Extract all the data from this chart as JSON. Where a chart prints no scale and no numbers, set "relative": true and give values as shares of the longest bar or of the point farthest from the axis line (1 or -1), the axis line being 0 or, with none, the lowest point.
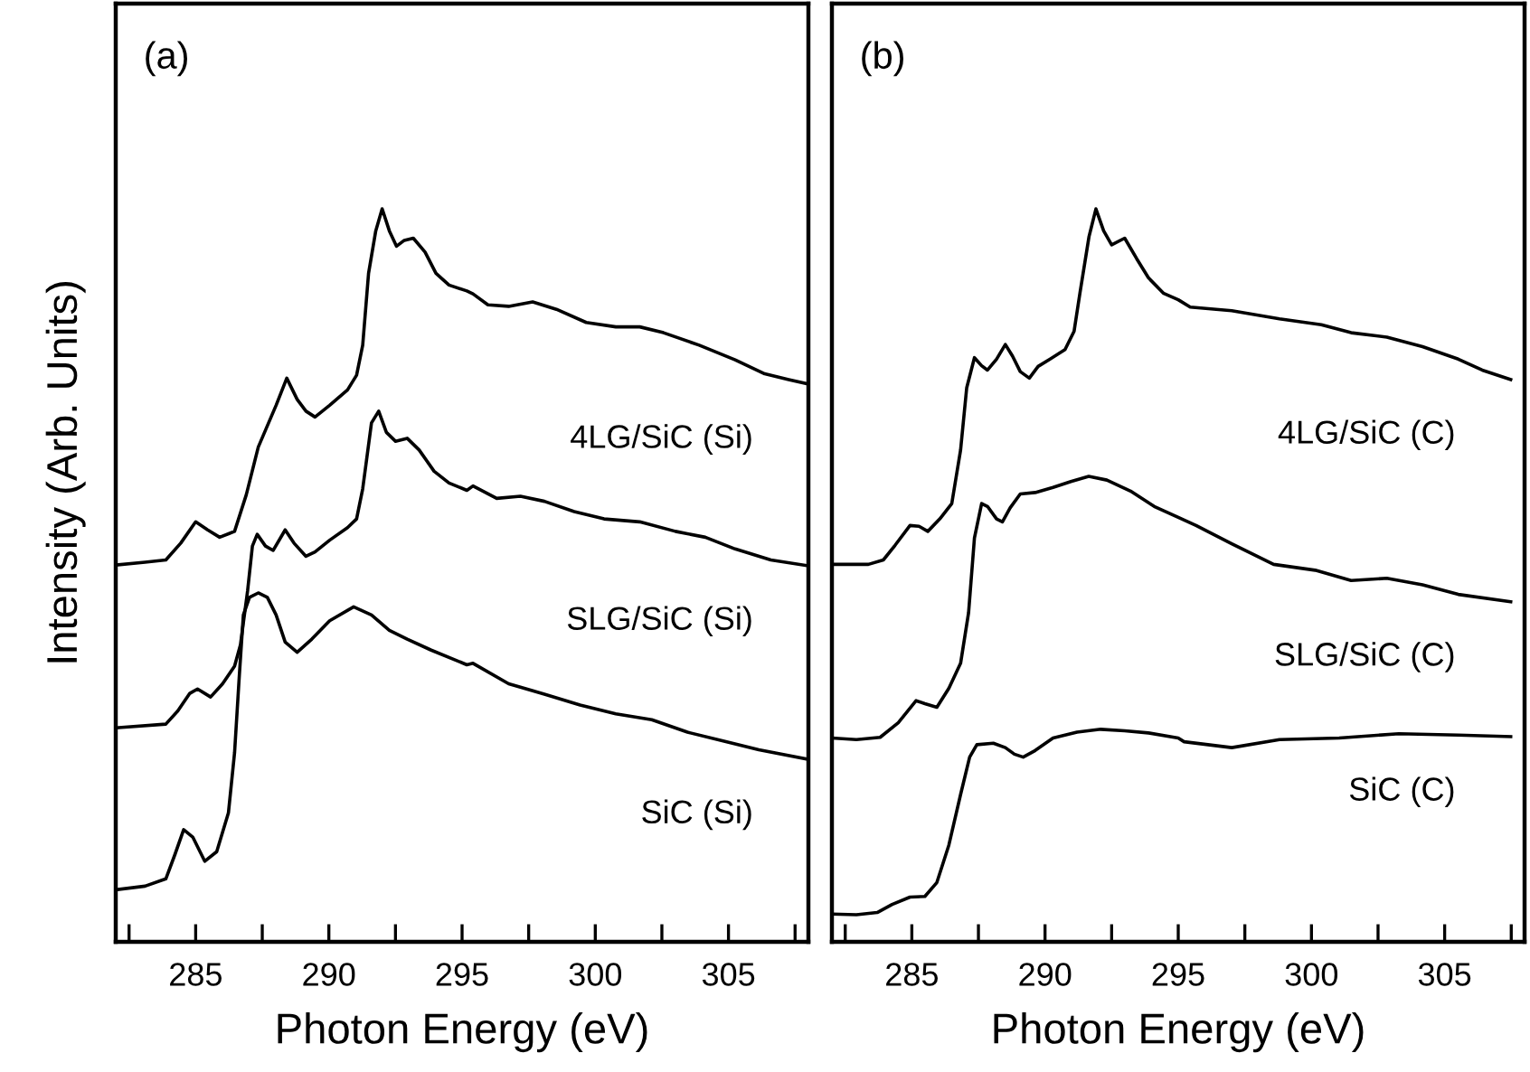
{
  "chart_data": [
    {
      "type": "line",
      "relative": true,
      "xlabel": "Photon Energy (eV)",
      "ylabel": "Intensity (Arb. Units)",
      "annotations": [
        "(a)"
      ],
      "xlim": [
        282,
        308
      ],
      "xticks": [
        {
          "value": 282.5,
          "label": null
        },
        285,
        {
          "value": 287.5,
          "label": null
        },
        290,
        {
          "value": 292.5,
          "label": null
        },
        295,
        {
          "value": 297.5,
          "label": null
        },
        300,
        {
          "value": 302.5,
          "label": null
        },
        305,
        {
          "value": 307.5,
          "label": null
        }
      ],
      "tick_labels": "x",
      "series": [
        {
          "name": "4LG/SiC (Si)",
          "color": "#000000",
          "x": [
            282.0,
            283.1,
            283.88,
            284.44,
            285.0,
            285.45,
            285.9,
            286.46,
            286.9,
            287.35,
            287.69,
            288.02,
            288.42,
            288.81,
            289.14,
            289.48,
            290.03,
            290.7,
            291.04,
            291.27,
            291.49,
            291.76,
            292.0,
            292.27,
            292.54,
            292.83,
            293.17,
            293.61,
            294.02,
            294.51,
            295.18,
            295.41,
            295.97,
            296.75,
            297.65,
            298.54,
            299.66,
            300.77,
            301.67,
            302.56,
            303.9,
            305.25,
            306.36,
            307.26,
            308.0
          ],
          "values": [
            0.514,
            0.518,
            0.521,
            0.544,
            0.573,
            0.562,
            0.552,
            0.56,
            0.61,
            0.675,
            0.704,
            0.732,
            0.769,
            0.74,
            0.724,
            0.716,
            0.732,
            0.753,
            0.773,
            0.814,
            0.912,
            0.97,
            1.0,
            0.97,
            0.949,
            0.957,
            0.96,
            0.941,
            0.912,
            0.896,
            0.888,
            0.884,
            0.869,
            0.867,
            0.873,
            0.863,
            0.845,
            0.839,
            0.839,
            0.831,
            0.814,
            0.794,
            0.775,
            0.767,
            0.761
          ]
        },
        {
          "name": "SLG/SiC (Si)",
          "color": "#000000",
          "x": [
            282.0,
            283.88,
            284.33,
            284.78,
            285.07,
            285.56,
            286.01,
            286.46,
            286.68,
            286.95,
            287.13,
            287.31,
            287.62,
            287.91,
            288.36,
            288.69,
            289.14,
            289.48,
            290.03,
            290.7,
            291.04,
            291.27,
            291.6,
            291.87,
            292.16,
            292.5,
            292.94,
            293.39,
            293.95,
            294.51,
            295.18,
            295.41,
            296.3,
            297.19,
            298.09,
            299.21,
            300.33,
            301.67,
            303.01,
            304.13,
            305.25,
            306.59,
            308.0
          ],
          "values": [
            0.292,
            0.297,
            0.315,
            0.339,
            0.345,
            0.334,
            0.352,
            0.376,
            0.405,
            0.479,
            0.54,
            0.556,
            0.54,
            0.534,
            0.562,
            0.544,
            0.526,
            0.532,
            0.548,
            0.565,
            0.577,
            0.618,
            0.708,
            0.724,
            0.695,
            0.683,
            0.687,
            0.671,
            0.642,
            0.626,
            0.616,
            0.622,
            0.605,
            0.608,
            0.601,
            0.587,
            0.577,
            0.573,
            0.56,
            0.552,
            0.536,
            0.521,
            0.513
          ]
        },
        {
          "name": "SiC (Si)",
          "color": "#000000",
          "x": [
            282.0,
            283.1,
            283.88,
            284.22,
            284.55,
            284.89,
            285.34,
            285.79,
            286.23,
            286.46,
            286.64,
            286.79,
            287.02,
            287.35,
            287.69,
            288.02,
            288.36,
            288.81,
            289.36,
            290.03,
            290.93,
            291.6,
            292.27,
            292.94,
            293.84,
            295.18,
            295.41,
            296.75,
            298.09,
            299.43,
            300.77,
            302.12,
            303.46,
            304.8,
            306.14,
            308.0
          ],
          "values": [
            0.071,
            0.076,
            0.086,
            0.119,
            0.153,
            0.143,
            0.11,
            0.123,
            0.176,
            0.258,
            0.364,
            0.446,
            0.47,
            0.476,
            0.47,
            0.446,
            0.409,
            0.395,
            0.413,
            0.438,
            0.457,
            0.446,
            0.425,
            0.413,
            0.398,
            0.378,
            0.38,
            0.352,
            0.338,
            0.323,
            0.311,
            0.303,
            0.286,
            0.274,
            0.262,
            0.249
          ]
        }
      ]
    },
    {
      "type": "line",
      "relative": true,
      "xlabel": "Photon Energy (eV)",
      "annotations": [
        "(b)"
      ],
      "xlim": [
        282,
        308
      ],
      "xticks": [
        {
          "value": 282.5,
          "label": null
        },
        285,
        {
          "value": 287.5,
          "label": null
        },
        290,
        {
          "value": 292.5,
          "label": null
        },
        295,
        {
          "value": 297.5,
          "label": null
        },
        300,
        {
          "value": 302.5,
          "label": null
        },
        305,
        {
          "value": 307.5,
          "label": null
        }
      ],
      "tick_labels": "x",
      "series": [
        {
          "name": "4LG/SiC (C)",
          "color": "#000000",
          "x": [
            282.0,
            283.37,
            283.93,
            284.37,
            284.93,
            285.27,
            285.6,
            286.05,
            286.5,
            286.83,
            287.06,
            287.35,
            287.62,
            287.84,
            288.18,
            288.51,
            288.78,
            289.07,
            289.41,
            289.74,
            290.19,
            290.75,
            291.09,
            291.31,
            291.65,
            291.91,
            292.2,
            292.5,
            292.99,
            293.44,
            293.88,
            294.44,
            295.0,
            295.45,
            297.01,
            298.8,
            300.37,
            301.49,
            302.83,
            304.17,
            305.51,
            306.41,
            307.48
          ],
          "values": [
            0.515,
            0.515,
            0.521,
            0.541,
            0.568,
            0.567,
            0.56,
            0.577,
            0.598,
            0.671,
            0.756,
            0.797,
            0.786,
            0.78,
            0.795,
            0.815,
            0.799,
            0.778,
            0.769,
            0.785,
            0.795,
            0.808,
            0.833,
            0.885,
            0.962,
            1.0,
            0.97,
            0.951,
            0.96,
            0.932,
            0.906,
            0.885,
            0.876,
            0.866,
            0.861,
            0.85,
            0.842,
            0.831,
            0.825,
            0.812,
            0.795,
            0.78,
            0.767
          ]
        },
        {
          "name": "SLG/SiC (C)",
          "color": "#000000",
          "x": [
            282.0,
            282.92,
            283.81,
            284.49,
            285.16,
            285.49,
            285.94,
            286.39,
            286.83,
            287.13,
            287.35,
            287.62,
            287.84,
            288.18,
            288.4,
            288.69,
            289.07,
            289.63,
            290.3,
            290.97,
            291.64,
            292.32,
            293.21,
            294.1,
            295.0,
            295.67,
            297.01,
            298.58,
            300.14,
            301.49,
            302.83,
            304.17,
            305.51,
            307.48
          ],
          "values": [
            0.278,
            0.276,
            0.279,
            0.299,
            0.329,
            0.325,
            0.32,
            0.346,
            0.38,
            0.449,
            0.551,
            0.598,
            0.594,
            0.577,
            0.573,
            0.592,
            0.611,
            0.613,
            0.62,
            0.628,
            0.635,
            0.63,
            0.615,
            0.594,
            0.579,
            0.568,
            0.543,
            0.515,
            0.507,
            0.493,
            0.496,
            0.487,
            0.474,
            0.464
          ]
        },
        {
          "name": "SiC (C)",
          "color": "#000000",
          "x": [
            282.0,
            282.92,
            283.7,
            284.26,
            284.93,
            285.49,
            285.94,
            286.39,
            286.83,
            287.17,
            287.44,
            288.06,
            288.51,
            288.85,
            289.18,
            289.63,
            290.3,
            291.2,
            292.09,
            292.99,
            293.88,
            295.0,
            295.22,
            297.01,
            298.8,
            301.04,
            303.28,
            305.51,
            307.48
          ],
          "values": [
            0.038,
            0.037,
            0.04,
            0.051,
            0.061,
            0.062,
            0.081,
            0.132,
            0.201,
            0.252,
            0.269,
            0.271,
            0.265,
            0.256,
            0.252,
            0.261,
            0.278,
            0.286,
            0.29,
            0.288,
            0.285,
            0.278,
            0.273,
            0.265,
            0.276,
            0.278,
            0.284,
            0.282,
            0.28
          ]
        }
      ]
    }
  ]
}
